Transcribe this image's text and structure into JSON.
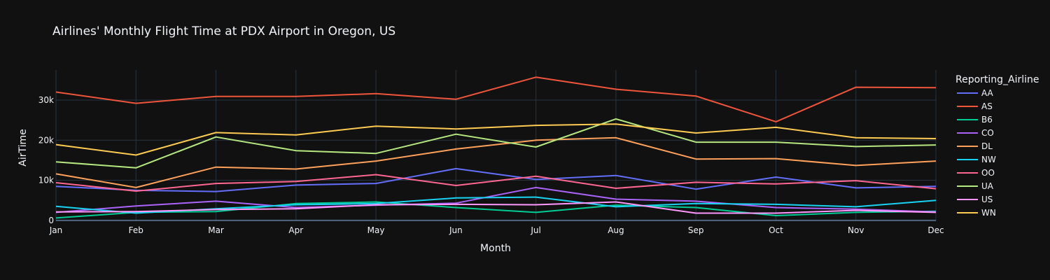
{
  "chart_data": {
    "type": "line",
    "title": "Airlines' Monthly Flight Time at PDX Airport in Oregon, US",
    "xlabel": "Month",
    "ylabel": "AirTime",
    "legend_title": "Reporting_Airline",
    "legend_position": "right",
    "grid": true,
    "ylim": [
      -200,
      37500
    ],
    "y_ticks": [
      0,
      10000,
      20000,
      30000
    ],
    "y_tick_labels": [
      "0",
      "10k",
      "20k",
      "30k"
    ],
    "categories": [
      "Jan",
      "Feb",
      "Mar",
      "Apr",
      "May",
      "Jun",
      "Jul",
      "Aug",
      "Sep",
      "Oct",
      "Nov",
      "Dec"
    ],
    "series": [
      {
        "name": "AA",
        "color": "#636efa",
        "values": [
          8500,
          7500,
          7200,
          8800,
          9200,
          12900,
          10200,
          11200,
          7800,
          10800,
          8100,
          8500
        ]
      },
      {
        "name": "AS",
        "color": "#EF553B",
        "values": [
          32000,
          29200,
          30900,
          30900,
          31600,
          30200,
          35700,
          32700,
          31000,
          24600,
          33200,
          33100
        ]
      },
      {
        "name": "B6",
        "color": "#00cc96",
        "values": [
          600,
          2000,
          2200,
          4200,
          4600,
          3200,
          2000,
          3800,
          3200,
          1200,
          2000,
          2300
        ]
      },
      {
        "name": "CO",
        "color": "#ab63fa",
        "values": [
          2000,
          3600,
          4800,
          3200,
          3800,
          4300,
          8200,
          5300,
          4800,
          3200,
          2800,
          2100
        ]
      },
      {
        "name": "DL",
        "color": "#FFA15A",
        "values": [
          11600,
          8200,
          13300,
          12800,
          14800,
          17800,
          20000,
          20600,
          15300,
          15400,
          13700,
          14800
        ]
      },
      {
        "name": "NW",
        "color": "#19d3f3",
        "values": [
          3500,
          1800,
          2900,
          3900,
          4200,
          5600,
          5800,
          3400,
          4200,
          4000,
          3400,
          5000
        ]
      },
      {
        "name": "OO",
        "color": "#FF6692",
        "values": [
          9400,
          7300,
          9200,
          9700,
          11400,
          8700,
          11000,
          8000,
          9500,
          9100,
          9900,
          7900
        ]
      },
      {
        "name": "UA",
        "color": "#B6E880",
        "values": [
          14600,
          13100,
          20800,
          17400,
          16700,
          21500,
          18300,
          25300,
          19500,
          19500,
          18400,
          18800
        ]
      },
      {
        "name": "US",
        "color": "#FF97FF",
        "values": [
          2100,
          2200,
          2700,
          2900,
          3900,
          4000,
          3900,
          4600,
          1800,
          1800,
          2500,
          2000
        ]
      },
      {
        "name": "WN",
        "color": "#FECB52",
        "values": [
          18900,
          16300,
          21900,
          21300,
          23500,
          22800,
          23700,
          24000,
          21800,
          23200,
          20600,
          20400
        ]
      }
    ]
  }
}
